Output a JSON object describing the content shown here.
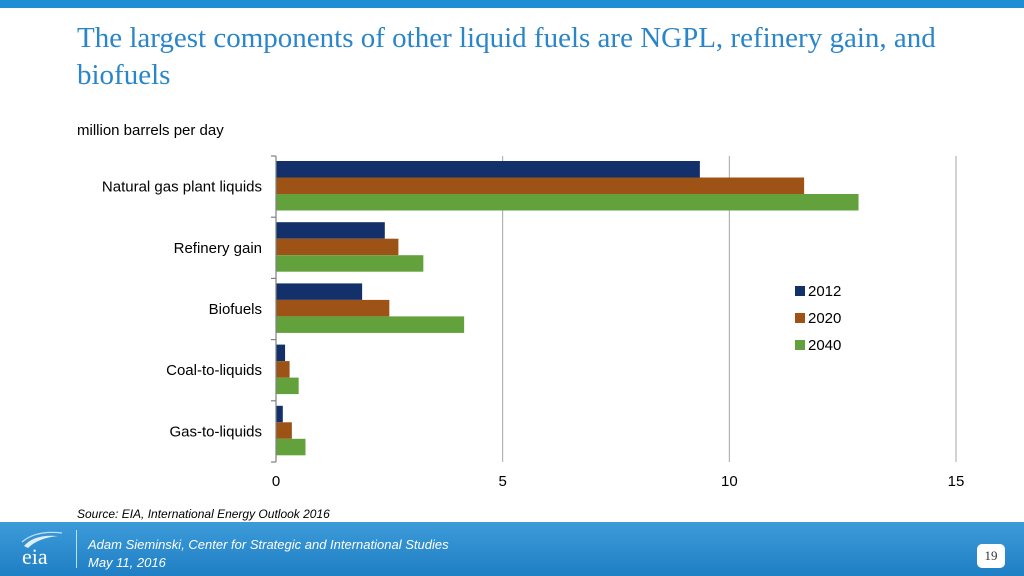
{
  "slide": {
    "title": "The largest components of other liquid fuels are NGPL, refinery gain, and biofuels",
    "unit_label": "million barrels per day",
    "source": "Source:  EIA, International Energy Outlook 2016"
  },
  "footer": {
    "logo_text": "eia",
    "presenter": "Adam Sieminski, Center for Strategic and International Studies",
    "date": "May 11, 2016",
    "page_number": "19"
  },
  "colors": {
    "title": "#2a86c8",
    "footer": "#1f7fc4",
    "s2012": "#13306b",
    "s2020": "#9c5315",
    "s2040": "#62a13b"
  },
  "chart_data": {
    "type": "bar",
    "orientation": "horizontal",
    "categories": [
      "Natural gas plant liquids",
      "Refinery gain",
      "Biofuels",
      "Coal-to-liquids",
      "Gas-to-liquids"
    ],
    "series": [
      {
        "name": "2012",
        "values": [
          9.35,
          2.4,
          1.9,
          0.2,
          0.15
        ]
      },
      {
        "name": "2020",
        "values": [
          11.65,
          2.7,
          2.5,
          0.3,
          0.35
        ]
      },
      {
        "name": "2040",
        "values": [
          12.85,
          3.25,
          4.15,
          0.5,
          0.65
        ]
      }
    ],
    "xlim": [
      0,
      15
    ],
    "xticks": [
      "0",
      "5",
      "10",
      "15"
    ],
    "ylabel": "million barrels per day",
    "legend_position": "right",
    "grid": "vertical"
  }
}
